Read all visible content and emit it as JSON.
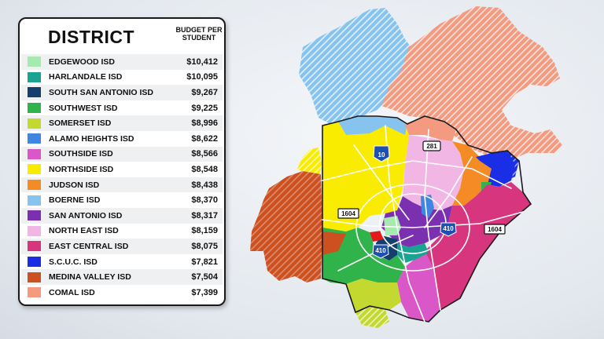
{
  "legend": {
    "title": "DISTRICT",
    "subtitle": "BUDGET PER STUDENT",
    "districts": [
      {
        "name": "EDGEWOOD ISD",
        "budget": "$10,412",
        "color": "#a6eab0"
      },
      {
        "name": "HARLANDALE ISD",
        "budget": "$10,095",
        "color": "#1ba392"
      },
      {
        "name": "SOUTH SAN ANTONIO ISD",
        "budget": "$9,267",
        "color": "#123f6b"
      },
      {
        "name": "SOUTHWEST ISD",
        "budget": "$9,225",
        "color": "#2fb34a"
      },
      {
        "name": "SOMERSET ISD",
        "budget": "$8,996",
        "color": "#c3d92f"
      },
      {
        "name": "ALAMO HEIGHTS ISD",
        "budget": "$8,622",
        "color": "#3f86e3"
      },
      {
        "name": "SOUTHSIDE ISD",
        "budget": "$8,566",
        "color": "#d957c6"
      },
      {
        "name": "NORTHSIDE ISD",
        "budget": "$8,548",
        "color": "#f9ec00"
      },
      {
        "name": "JUDSON ISD",
        "budget": "$8,438",
        "color": "#f58b24"
      },
      {
        "name": "BOERNE ISD",
        "budget": "$8,370",
        "color": "#86c3ee"
      },
      {
        "name": "SAN ANTONIO ISD",
        "budget": "$8,317",
        "color": "#7b30b0"
      },
      {
        "name": "NORTH EAST ISD",
        "budget": "$8,159",
        "color": "#f2b6e4"
      },
      {
        "name": "EAST CENTRAL ISD",
        "budget": "$8,075",
        "color": "#d7357e"
      },
      {
        "name": "S.C.U.C. ISD",
        "budget": "$7,821",
        "color": "#1a2ee6"
      },
      {
        "name": "MEDINA VALLEY ISD",
        "budget": "$7,504",
        "color": "#cc5020"
      },
      {
        "name": "COMAL ISD",
        "budget": "$7,399",
        "color": "#f39a80"
      }
    ]
  },
  "map": {
    "highways": {
      "i10": "10",
      "us281": "281",
      "loop1604_west": "1604",
      "loop1604_east": "1604",
      "loop410_east": "410",
      "loop410_south": "410"
    }
  }
}
